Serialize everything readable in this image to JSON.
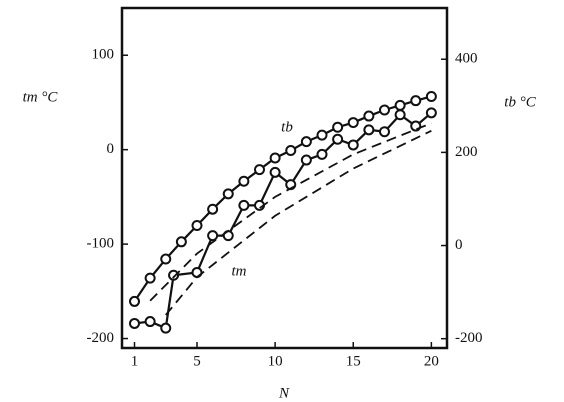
{
  "chart_data": {
    "type": "line",
    "xlabel": "N",
    "ylabel": "tm °C",
    "y2label": "tb °C",
    "xlim": [
      0.2,
      21
    ],
    "xticks": [
      1,
      5,
      10,
      15,
      20
    ],
    "ylim": [
      -210,
      150
    ],
    "yticks": [
      100,
      0,
      -100,
      -200
    ],
    "y2lim": [
      -220,
      510
    ],
    "y2ticks": [
      400,
      200,
      0,
      -200
    ],
    "annotations": [
      "tb",
      "tm"
    ],
    "series": [
      {
        "color": "#111",
        "style": "solid",
        "marker": true,
        "axis": "y2",
        "x": [
          1,
          2,
          3,
          4,
          5,
          6,
          7,
          8,
          9,
          10,
          11,
          12,
          13,
          14,
          15,
          16,
          17,
          18,
          19,
          20
        ],
        "values": [
          -120,
          -70,
          -29,
          8,
          43,
          78,
          111,
          138,
          163,
          188,
          204,
          223,
          237,
          254,
          264,
          278,
          291,
          301,
          311,
          320
        ]
      },
      {
        "color": "#111",
        "style": "solid",
        "marker": true,
        "x": [
          1,
          2,
          3,
          3.5,
          5,
          6,
          7,
          8,
          9,
          10,
          11,
          12,
          13,
          14,
          15,
          16,
          17,
          18,
          19,
          20
        ],
        "values": [
          -184,
          -182,
          -189,
          -133,
          -130,
          -91,
          -91,
          -59,
          -59,
          -24,
          -37,
          -11,
          -5,
          11,
          5,
          21,
          19,
          37,
          25,
          39
        ]
      },
      {
        "color": "#111",
        "style": "dashed",
        "marker": false,
        "x": [
          2,
          5,
          10,
          15,
          20
        ],
        "values": [
          -160,
          -110,
          -50,
          -5,
          28
        ]
      },
      {
        "color": "#111",
        "style": "dashed",
        "marker": false,
        "x": [
          3,
          5,
          10,
          15,
          20
        ],
        "values": [
          -175,
          -135,
          -70,
          -20,
          20
        ]
      }
    ]
  }
}
